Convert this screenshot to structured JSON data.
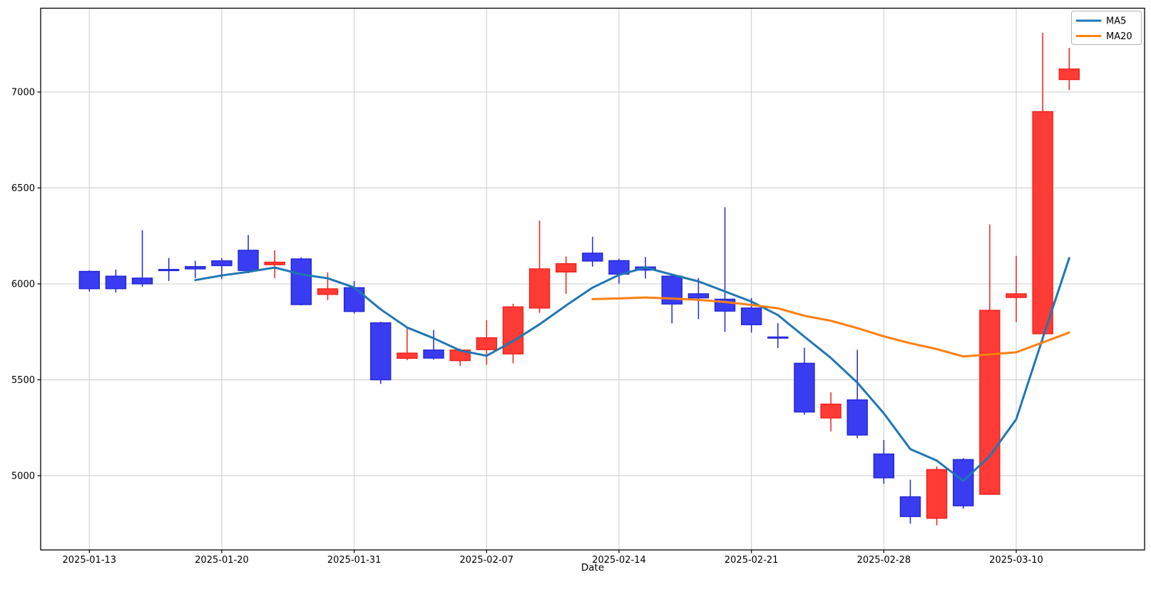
{
  "chart_data": {
    "type": "candlestick",
    "title": "",
    "xlabel": "Date",
    "ylabel": "",
    "grid": true,
    "background_color": "#ffffff",
    "grid_color": "#cccccc",
    "spine_color": "#000000",
    "up_color": {
      "fill": "#ff3b35",
      "edge": "#f1211b"
    },
    "down_color": {
      "fill": "#3a3cf2",
      "edge": "#2226d8"
    },
    "ylim": [
      4613,
      7437
    ],
    "yticks": [
      "5000",
      "5500",
      "6000",
      "6500",
      "7000"
    ],
    "xtick_indices": [
      0,
      5,
      10,
      15,
      20,
      25,
      30,
      35
    ],
    "xtick_labels": [
      "2025-01-13",
      "2025-01-20",
      "2025-01-31",
      "2025-02-07",
      "2025-02-14",
      "2025-02-21",
      "2025-02-28",
      "2025-03-10"
    ],
    "legend": {
      "position": "upper right",
      "entries": [
        "MA5",
        "MA20"
      ]
    },
    "ma_series": [
      {
        "name": "MA5",
        "window": 5,
        "color": "#1f77b4"
      },
      {
        "name": "MA20",
        "window": 20,
        "color": "#ff7f0e"
      }
    ],
    "candles": [
      {
        "date": "2025-01-13",
        "open": 6065,
        "high": 6070,
        "low": 5960,
        "close": 5975
      },
      {
        "date": "2025-01-14",
        "open": 6040,
        "high": 6075,
        "low": 5955,
        "close": 5975
      },
      {
        "date": "2025-01-15",
        "open": 6030,
        "high": 6280,
        "low": 5985,
        "close": 6000
      },
      {
        "date": "2025-01-16",
        "open": 6075,
        "high": 6135,
        "low": 6015,
        "close": 6070
      },
      {
        "date": "2025-01-17",
        "open": 6090,
        "high": 6120,
        "low": 6030,
        "close": 6078
      },
      {
        "date": "2025-01-20",
        "open": 6120,
        "high": 6135,
        "low": 6025,
        "close": 6095
      },
      {
        "date": "2025-01-21",
        "open": 6175,
        "high": 6255,
        "low": 6055,
        "close": 6070
      },
      {
        "date": "2025-01-22",
        "open": 6100,
        "high": 6175,
        "low": 6030,
        "close": 6113
      },
      {
        "date": "2025-01-23",
        "open": 6130,
        "high": 6138,
        "low": 5888,
        "close": 5892
      },
      {
        "date": "2025-01-24",
        "open": 5945,
        "high": 6060,
        "low": 5915,
        "close": 5974
      },
      {
        "date": "2025-01-31",
        "open": 5980,
        "high": 6015,
        "low": 5845,
        "close": 5856
      },
      {
        "date": "2025-02-03",
        "open": 5797,
        "high": 5802,
        "low": 5478,
        "close": 5500
      },
      {
        "date": "2025-02-04",
        "open": 5612,
        "high": 5770,
        "low": 5602,
        "close": 5639
      },
      {
        "date": "2025-02-05",
        "open": 5655,
        "high": 5760,
        "low": 5605,
        "close": 5613
      },
      {
        "date": "2025-02-06",
        "open": 5600,
        "high": 5662,
        "low": 5572,
        "close": 5655
      },
      {
        "date": "2025-02-07",
        "open": 5657,
        "high": 5810,
        "low": 5578,
        "close": 5719
      },
      {
        "date": "2025-02-10",
        "open": 5635,
        "high": 5896,
        "low": 5586,
        "close": 5880
      },
      {
        "date": "2025-02-11",
        "open": 5874,
        "high": 6330,
        "low": 5849,
        "close": 6078
      },
      {
        "date": "2025-02-12",
        "open": 6062,
        "high": 6143,
        "low": 5948,
        "close": 6105
      },
      {
        "date": "2025-02-13",
        "open": 6160,
        "high": 6245,
        "low": 6090,
        "close": 6119
      },
      {
        "date": "2025-02-14",
        "open": 6121,
        "high": 6131,
        "low": 6001,
        "close": 6051
      },
      {
        "date": "2025-02-17",
        "open": 6088,
        "high": 6140,
        "low": 6028,
        "close": 6072
      },
      {
        "date": "2025-02-18",
        "open": 6040,
        "high": 6046,
        "low": 5794,
        "close": 5895
      },
      {
        "date": "2025-02-19",
        "open": 5948,
        "high": 6031,
        "low": 5816,
        "close": 5927
      },
      {
        "date": "2025-02-20",
        "open": 5920,
        "high": 6400,
        "low": 5750,
        "close": 5858
      },
      {
        "date": "2025-02-21",
        "open": 5874,
        "high": 5926,
        "low": 5746,
        "close": 5787
      },
      {
        "date": "2025-02-24",
        "open": 5723,
        "high": 5795,
        "low": 5665,
        "close": 5720
      },
      {
        "date": "2025-02-25",
        "open": 5586,
        "high": 5667,
        "low": 5317,
        "close": 5332
      },
      {
        "date": "2025-02-26",
        "open": 5301,
        "high": 5435,
        "low": 5231,
        "close": 5373
      },
      {
        "date": "2025-02-27",
        "open": 5395,
        "high": 5656,
        "low": 5196,
        "close": 5212
      },
      {
        "date": "2025-02-28",
        "open": 5113,
        "high": 5186,
        "low": 4958,
        "close": 4989
      },
      {
        "date": "2025-03-04",
        "open": 4890,
        "high": 4979,
        "low": 4750,
        "close": 4787
      },
      {
        "date": "2025-03-05",
        "open": 4778,
        "high": 5048,
        "low": 4741,
        "close": 5032
      },
      {
        "date": "2025-03-06",
        "open": 5084,
        "high": 5091,
        "low": 4828,
        "close": 4843
      },
      {
        "date": "2025-03-07",
        "open": 4903,
        "high": 6310,
        "low": 4900,
        "close": 5862
      },
      {
        "date": "2025-03-10",
        "open": 5929,
        "high": 6146,
        "low": 5800,
        "close": 5948
      },
      {
        "date": "2025-03-11",
        "open": 5740,
        "high": 7309,
        "low": 5738,
        "close": 6898
      },
      {
        "date": "2025-03-12",
        "open": 7065,
        "high": 7230,
        "low": 7010,
        "close": 7120
      }
    ]
  }
}
